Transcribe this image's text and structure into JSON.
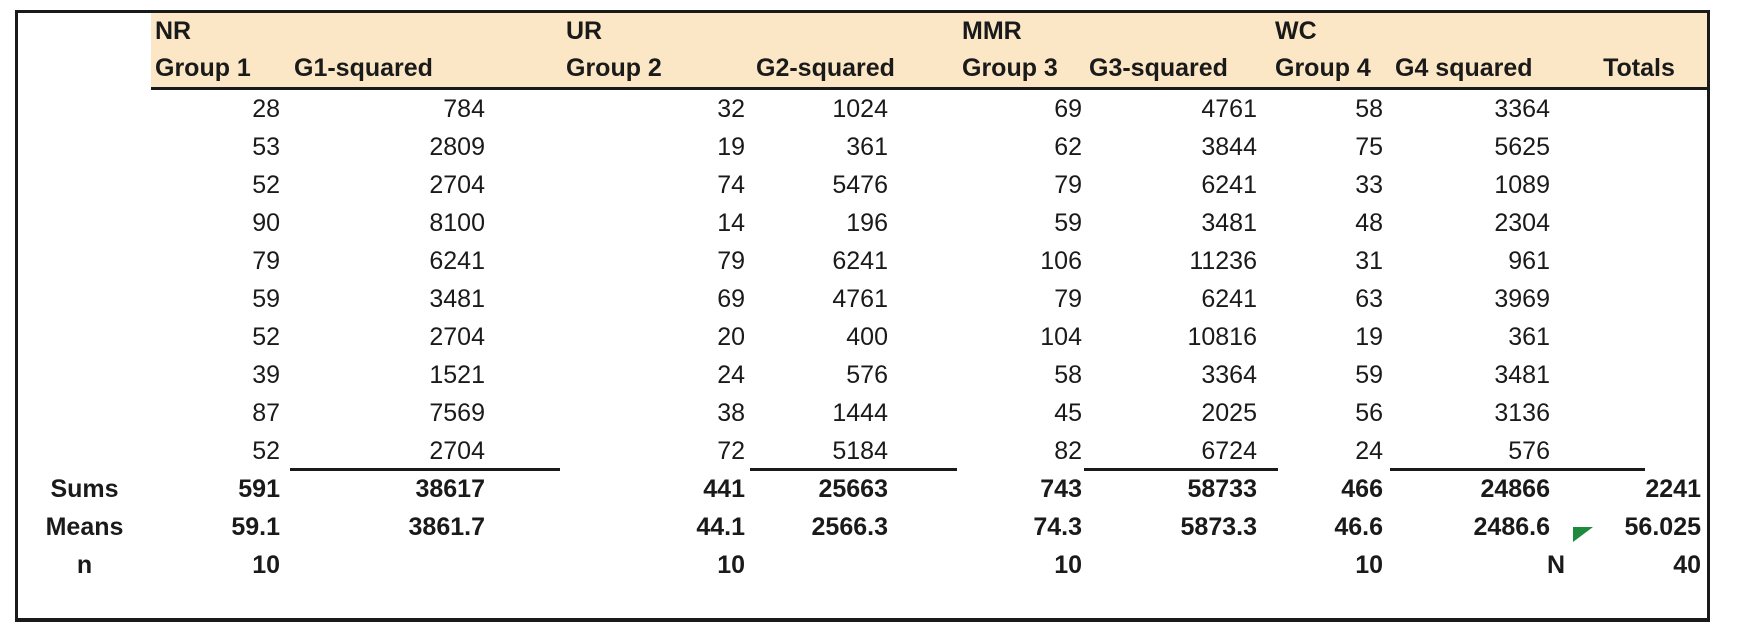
{
  "sheet": {
    "groups": [
      {
        "tag": "NR",
        "col": "Group 1",
        "sq": "G1-squared"
      },
      {
        "tag": "UR",
        "col": "Group 2",
        "sq": "G2-squared"
      },
      {
        "tag": "MMR",
        "col": "Group 3",
        "sq": "G3-squared"
      },
      {
        "tag": "WC",
        "col": "Group 4",
        "sq": "G4 squared"
      }
    ],
    "totals_header": "Totals",
    "rows": [
      [
        "28",
        "784",
        "32",
        "1024",
        "69",
        "4761",
        "58",
        "3364"
      ],
      [
        "53",
        "2809",
        "19",
        "361",
        "62",
        "3844",
        "75",
        "5625"
      ],
      [
        "52",
        "2704",
        "74",
        "5476",
        "79",
        "6241",
        "33",
        "1089"
      ],
      [
        "90",
        "8100",
        "14",
        "196",
        "59",
        "3481",
        "48",
        "2304"
      ],
      [
        "79",
        "6241",
        "79",
        "6241",
        "106",
        "11236",
        "31",
        "961"
      ],
      [
        "59",
        "3481",
        "69",
        "4761",
        "79",
        "6241",
        "63",
        "3969"
      ],
      [
        "52",
        "2704",
        "20",
        "400",
        "104",
        "10816",
        "19",
        "361"
      ],
      [
        "39",
        "1521",
        "24",
        "576",
        "58",
        "3364",
        "59",
        "3481"
      ],
      [
        "87",
        "7569",
        "38",
        "1444",
        "45",
        "2025",
        "56",
        "3136"
      ],
      [
        "52",
        "2704",
        "72",
        "5184",
        "82",
        "6724",
        "24",
        "576"
      ]
    ],
    "summary": {
      "sums_label": "Sums",
      "sums": [
        "591",
        "38617",
        "441",
        "25663",
        "743",
        "58733",
        "466",
        "24866"
      ],
      "sums_total": "2241",
      "means_label": "Means",
      "means": [
        "59.1",
        "3861.7",
        "44.1",
        "2566.3",
        "74.3",
        "5873.3",
        "46.6",
        "2486.6"
      ],
      "means_total": "56.025",
      "n_label": "n",
      "n_values": [
        "10",
        "10",
        "10",
        "10"
      ],
      "n_total_label": "N",
      "n_total": "40"
    },
    "colors": {
      "header_bg": "#fbe7c5",
      "text": "#1a1a1a",
      "border": "#1a1a1a",
      "flag_green": "#1e8a3e"
    }
  }
}
